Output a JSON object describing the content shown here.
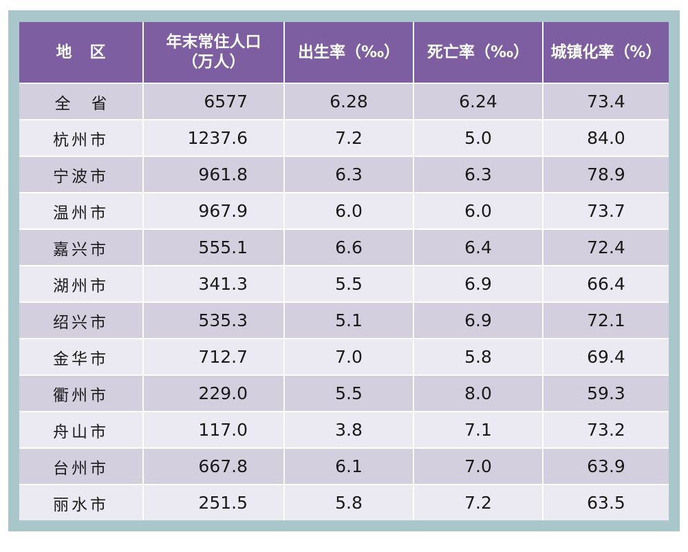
{
  "table": {
    "headers": {
      "region": "地区",
      "population_line1": "年末常住人口",
      "population_line2": "（万人）",
      "birth_rate": "出生率（‰）",
      "death_rate": "死亡率（‰）",
      "urbanization": "城镇化率（%）"
    },
    "rows": [
      {
        "region": "全省",
        "population": "6577",
        "birth": "6.28",
        "death": "6.24",
        "urban": "73.4"
      },
      {
        "region": "杭州市",
        "population": "1237.6",
        "birth": "7.2",
        "death": "5.0",
        "urban": "84.0"
      },
      {
        "region": "宁波市",
        "population": "961.8",
        "birth": "6.3",
        "death": "6.3",
        "urban": "78.9"
      },
      {
        "region": "温州市",
        "population": "967.9",
        "birth": "6.0",
        "death": "6.0",
        "urban": "73.7"
      },
      {
        "region": "嘉兴市",
        "population": "555.1",
        "birth": "6.6",
        "death": "6.4",
        "urban": "72.4"
      },
      {
        "region": "湖州市",
        "population": "341.3",
        "birth": "5.5",
        "death": "6.9",
        "urban": "66.4"
      },
      {
        "region": "绍兴市",
        "population": "535.3",
        "birth": "5.1",
        "death": "6.9",
        "urban": "72.1"
      },
      {
        "region": "金华市",
        "population": "712.7",
        "birth": "7.0",
        "death": "5.8",
        "urban": "69.4"
      },
      {
        "region": "衢州市",
        "population": "229.0",
        "birth": "5.5",
        "death": "8.0",
        "urban": "59.3"
      },
      {
        "region": "舟山市",
        "population": "117.0",
        "birth": "3.8",
        "death": "7.1",
        "urban": "73.2"
      },
      {
        "region": "台州市",
        "population": "667.8",
        "birth": "6.1",
        "death": "7.0",
        "urban": "63.9"
      },
      {
        "region": "丽水市",
        "population": "251.5",
        "birth": "5.8",
        "death": "7.2",
        "urban": "63.5"
      }
    ]
  },
  "colors": {
    "header_bg": "#7c5ea1",
    "row_odd_bg": "#d4cfdf",
    "row_even_bg": "#ebe9f1",
    "frame_bg": "#a9c6cb"
  }
}
